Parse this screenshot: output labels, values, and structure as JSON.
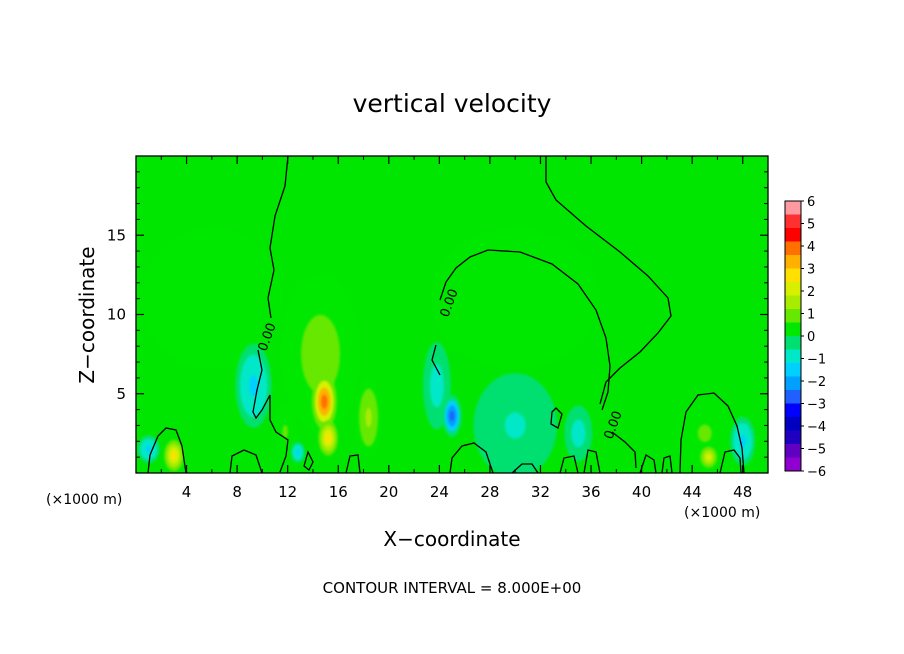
{
  "chart_data": {
    "type": "heatmap",
    "title": "vertical velocity",
    "xlabel": "X−coordinate",
    "ylabel": "Z−coordinate",
    "x_unit": "(×1000 m)",
    "z_unit": "(×1000 m)",
    "xlim": [
      0,
      50
    ],
    "ylim": [
      0,
      20
    ],
    "x_ticks": [
      4,
      8,
      12,
      16,
      20,
      24,
      28,
      32,
      36,
      40,
      44,
      48
    ],
    "y_ticks": [
      5,
      10,
      15
    ],
    "footer": "CONTOUR INTERVAL = 8.000E+00",
    "contour_label": "0.00",
    "colorbar": {
      "min": -6,
      "max": 6,
      "ticks": [
        6,
        5,
        4,
        3,
        2,
        1,
        0,
        -1,
        -2,
        -3,
        -4,
        -5,
        -6
      ],
      "tick_labels": [
        "6",
        "5",
        "4",
        "3",
        "2",
        "1",
        "0",
        "−1",
        "−2",
        "−3",
        "−4",
        "−5",
        "−6"
      ],
      "colors": [
        "#ff9aa0",
        "#ff3030",
        "#ff0000",
        "#ff7000",
        "#ffb000",
        "#ffe000",
        "#d8f000",
        "#a8ec00",
        "#66e800",
        "#00e800",
        "#00e070",
        "#00e8c8",
        "#00d0ff",
        "#00a0ff",
        "#2060ff",
        "#0000ff",
        "#0000c0",
        "#2000c0",
        "#6000c0",
        "#9000d0"
      ]
    },
    "background_color": "#00e600",
    "features": [
      {
        "x": 14.9,
        "z": 4.5,
        "value": 4.2,
        "sx": 0.9,
        "sz": 1.6
      },
      {
        "x": 15.2,
        "z": 2.2,
        "value": 2.5,
        "sx": 0.7,
        "sz": 1.0
      },
      {
        "x": 14.6,
        "z": 7.5,
        "value": 1.0,
        "sx": 2.8,
        "sz": 4.5
      },
      {
        "x": 18.4,
        "z": 3.5,
        "value": 1.3,
        "sx": 0.9,
        "sz": 2.2
      },
      {
        "x": 11.8,
        "z": 2.6,
        "value": 0.8,
        "sx": 0.8,
        "sz": 1.5
      },
      {
        "x": 3.0,
        "z": 1.1,
        "value": 2.6,
        "sx": 0.7,
        "sz": 0.9
      },
      {
        "x": 45.3,
        "z": 1.0,
        "value": 2.3,
        "sx": 0.8,
        "sz": 0.8
      },
      {
        "x": 45.0,
        "z": 2.5,
        "value": 0.8,
        "sx": 2.0,
        "sz": 2.0
      },
      {
        "x": 9.3,
        "z": 5.5,
        "value": -1.3,
        "sx": 1.3,
        "sz": 2.4
      },
      {
        "x": 25.0,
        "z": 3.6,
        "value": -2.4,
        "sx": 0.7,
        "sz": 1.2
      },
      {
        "x": 23.8,
        "z": 5.5,
        "value": -1.0,
        "sx": 1.0,
        "sz": 2.5
      },
      {
        "x": 1.0,
        "z": 1.5,
        "value": -1.5,
        "sx": 0.8,
        "sz": 0.8
      },
      {
        "x": 12.8,
        "z": 1.3,
        "value": -1.3,
        "sx": 0.5,
        "sz": 0.6
      },
      {
        "x": 35.0,
        "z": 2.5,
        "value": -1.0,
        "sx": 1.0,
        "sz": 1.6
      },
      {
        "x": 48.0,
        "z": 2.0,
        "value": -1.4,
        "sx": 0.9,
        "sz": 1.4
      },
      {
        "x": 30.0,
        "z": 3.0,
        "value": -0.7,
        "sx": 3.0,
        "sz": 3.0
      },
      {
        "x": 6.0,
        "z": 11.0,
        "value": 0.35,
        "sx": 5.0,
        "sz": 4.0
      },
      {
        "x": 30.0,
        "z": 11.0,
        "value": 0.3,
        "sx": 6.0,
        "sz": 4.0
      }
    ]
  }
}
